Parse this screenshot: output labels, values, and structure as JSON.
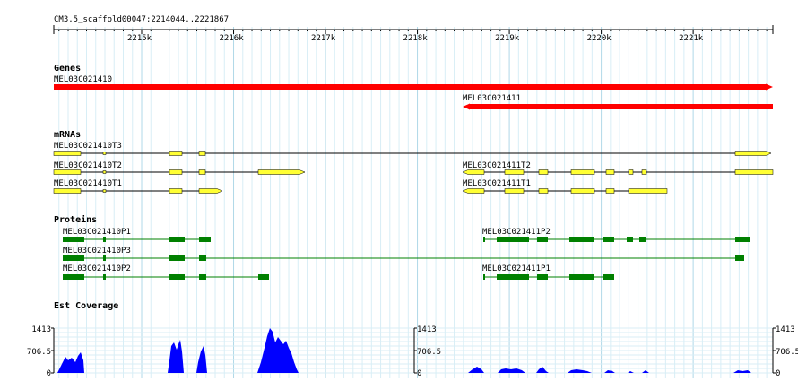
{
  "region": "CM3.5_scaffold00047:2214044..2221867",
  "ruler": {
    "ticks": [
      {
        "pos": 2215000,
        "label": "2215k"
      },
      {
        "pos": 2216000,
        "label": "2216k"
      },
      {
        "pos": 2217000,
        "label": "2217k"
      },
      {
        "pos": 2218000,
        "label": "2218k"
      },
      {
        "pos": 2219000,
        "label": "2219k"
      },
      {
        "pos": 2220000,
        "label": "2220k"
      },
      {
        "pos": 2221000,
        "label": "2221k"
      }
    ]
  },
  "colors": {
    "gene": "#ff0000",
    "mrna_exon": "#ffff33",
    "protein": "#008000",
    "coverage": "#0000ff",
    "grid": "#b0d8e8",
    "grid_light": "#d8eef6"
  },
  "tracks": {
    "genes": {
      "title": "Genes",
      "features": [
        {
          "name": "MEL03C021410",
          "strand": "+"
        },
        {
          "name": "MEL03C021411",
          "strand": "-"
        }
      ]
    },
    "mrnas": {
      "title": "mRNAs",
      "features": [
        {
          "name": "MEL03C021410T3"
        },
        {
          "name": "MEL03C021410T2"
        },
        {
          "name": "MEL03C021411T2"
        },
        {
          "name": "MEL03C021410T1"
        },
        {
          "name": "MEL03C021411T1"
        }
      ]
    },
    "proteins": {
      "title": "Proteins",
      "features": [
        {
          "name": "MEL03C021410P1"
        },
        {
          "name": "MEL03C021411P2"
        },
        {
          "name": "MEL03C021410P3"
        },
        {
          "name": "MEL03C021410P2"
        },
        {
          "name": "MEL03C021411P1"
        }
      ]
    },
    "est_coverage": {
      "title": "Est Coverage",
      "scale_labels": [
        "1413",
        "706.5",
        "0"
      ]
    }
  }
}
